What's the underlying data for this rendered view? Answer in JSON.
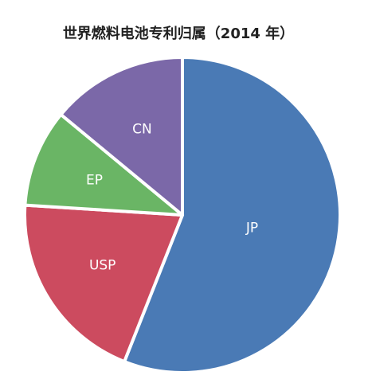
{
  "chart_data": {
    "type": "pie",
    "title": "世界燃料电池专利归属（2014 年）",
    "categories": [
      "JP",
      "USP",
      "EP",
      "CN"
    ],
    "values": [
      56,
      20,
      10,
      14
    ],
    "colors": [
      "#4a7ab5",
      "#cc4b5f",
      "#6ab565",
      "#7b68a8"
    ]
  }
}
